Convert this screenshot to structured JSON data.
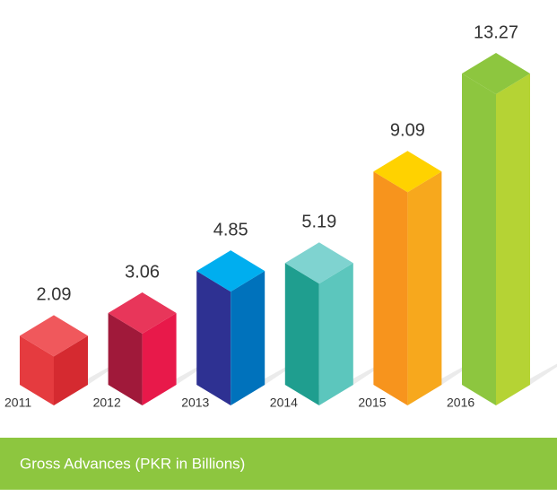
{
  "chart_data": {
    "type": "bar3d",
    "categories": [
      "2011",
      "2012",
      "2013",
      "2014",
      "2015",
      "2016"
    ],
    "values": [
      2.09,
      3.06,
      4.85,
      5.19,
      9.09,
      13.27
    ],
    "colors": [
      "#e53b3f",
      "#a0193a",
      "#2e3192",
      "#1f9e8f",
      "#f7941d",
      "#8dc63f"
    ],
    "top_colors": [
      "#f0585c",
      "#e8365a",
      "#00aeef",
      "#7fd3d0",
      "#ffd200",
      "#8dc63f"
    ],
    "side_colors": [
      "#d52a30",
      "#e8194a",
      "#0072bc",
      "#5cc6bd",
      "#f7a81d",
      "#b5d334"
    ],
    "caption": "Gross Advances (PKR in Billions)"
  }
}
